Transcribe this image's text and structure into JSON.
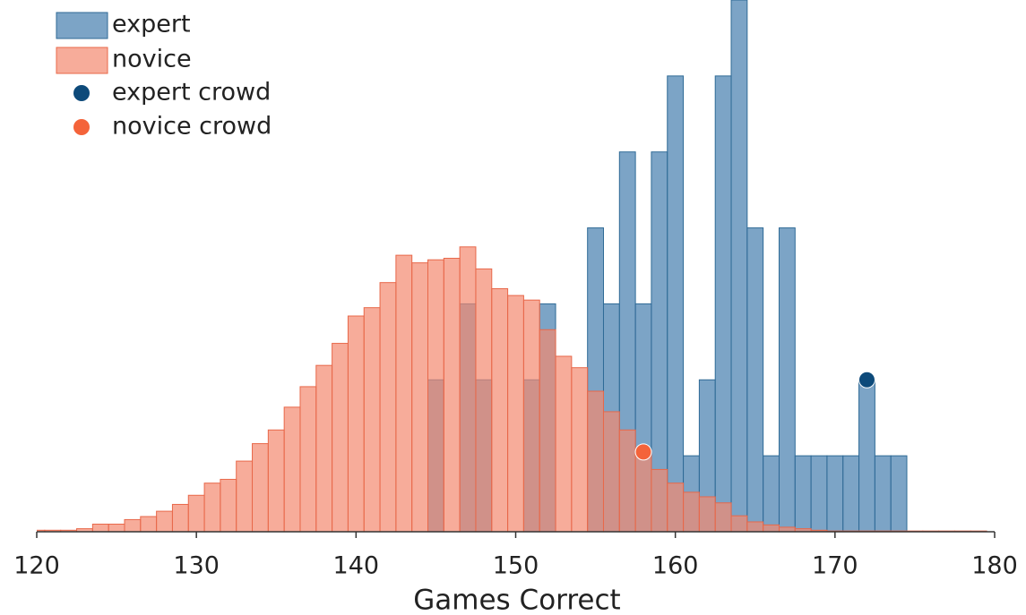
{
  "chart_data": {
    "type": "histogram",
    "xlabel": "Games Correct",
    "bins": [
      119.5,
      120.5,
      121.5,
      122.5,
      123.5,
      124.5,
      125.5,
      126.5,
      127.5,
      128.5,
      129.5,
      130.5,
      131.5,
      132.5,
      133.5,
      134.5,
      135.5,
      136.5,
      137.5,
      138.5,
      139.5,
      140.5,
      141.5,
      142.5,
      143.5,
      144.5,
      145.5,
      146.5,
      147.5,
      148.5,
      149.5,
      150.5,
      151.5,
      152.5,
      153.5,
      154.5,
      155.5,
      156.5,
      157.5,
      158.5,
      159.5,
      160.5,
      161.5,
      162.5,
      163.5,
      164.5,
      165.5,
      166.5,
      167.5,
      168.5,
      169.5,
      170.5,
      171.5,
      172.5,
      173.5,
      174.5,
      175.5,
      176.5,
      177.5,
      178.5,
      179.5
    ],
    "series": [
      {
        "name": "expert",
        "color": "#5b8db8",
        "edgecolor": "#2f6a96",
        "values": [
          0,
          0,
          0,
          0,
          0,
          0,
          0,
          0,
          0,
          0,
          0,
          0,
          0,
          0,
          0,
          0,
          0,
          0,
          0,
          0,
          0,
          0,
          0,
          0,
          0,
          2,
          0,
          3,
          2,
          0,
          0,
          2,
          3,
          0,
          0,
          4,
          3,
          5,
          3,
          5,
          6,
          1,
          2,
          6,
          7,
          4,
          1,
          4,
          1,
          1,
          1,
          1,
          2,
          1,
          1,
          0,
          0,
          0,
          0,
          0
        ]
      },
      {
        "name": "novice",
        "color": "#f4896f",
        "edgecolor": "#e8684a",
        "values": [
          0.02,
          0.02,
          0.02,
          0.04,
          0.1,
          0.1,
          0.16,
          0.2,
          0.27,
          0.36,
          0.48,
          0.64,
          0.69,
          0.93,
          1.16,
          1.34,
          1.64,
          1.91,
          2.19,
          2.48,
          2.84,
          2.95,
          3.28,
          3.64,
          3.54,
          3.58,
          3.6,
          3.75,
          3.46,
          3.2,
          3.11,
          3.05,
          2.66,
          2.31,
          2.16,
          1.85,
          1.58,
          1.34,
          1.07,
          0.82,
          0.64,
          0.52,
          0.46,
          0.38,
          0.21,
          0.13,
          0.09,
          0.06,
          0.04,
          0.02,
          0.01,
          0.01,
          0.01,
          0.01,
          0.01,
          0.01,
          0.01,
          0.01,
          0.01,
          0.01
        ]
      }
    ],
    "points": [
      {
        "name": "expert crowd",
        "color": "#0d4a7a",
        "x": 172,
        "y": 2
      },
      {
        "name": "novice crowd",
        "color": "#f4633a",
        "x": 158,
        "y": 1.05
      }
    ],
    "xlim": [
      120,
      180
    ],
    "ylim": [
      0,
      7
    ],
    "xticks": [
      120,
      130,
      140,
      150,
      160,
      170,
      180
    ]
  }
}
